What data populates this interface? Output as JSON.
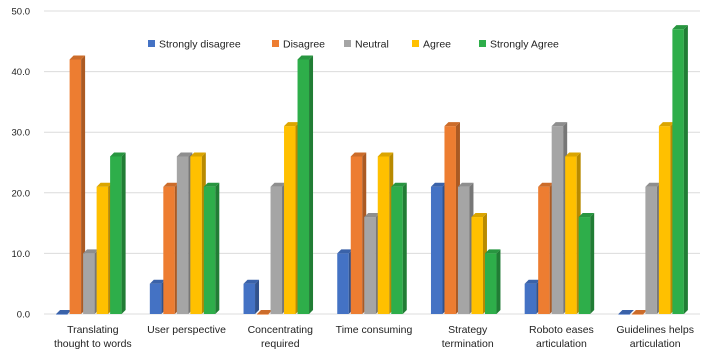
{
  "chart_data": {
    "type": "bar",
    "title": "",
    "xlabel": "",
    "ylabel": "",
    "ylim": [
      0,
      50
    ],
    "yticks": [
      "0.0",
      "10.0",
      "20.0",
      "30.0",
      "40.0",
      "50.0"
    ],
    "grid": true,
    "legend_position": "top",
    "categories": [
      [
        "Translating",
        "thought to words"
      ],
      [
        "User perspective"
      ],
      [
        "Concentrating",
        "required"
      ],
      [
        "Time consuming"
      ],
      [
        "Strategy",
        "termination"
      ],
      [
        "Roboto eases",
        "articulation"
      ],
      [
        "Guidelines helps",
        "articulation"
      ]
    ],
    "series": [
      {
        "name": "Strongly disagree",
        "color": "#4472C4",
        "values": [
          0,
          5,
          5,
          10,
          21,
          5,
          0
        ]
      },
      {
        "name": "Disagree",
        "color": "#ED7D31",
        "values": [
          42,
          21,
          0,
          26,
          31,
          21,
          0
        ]
      },
      {
        "name": "Neutral",
        "color": "#A5A5A5",
        "values": [
          10,
          26,
          21,
          16,
          21,
          31,
          21
        ]
      },
      {
        "name": "Agree",
        "color": "#FFC000",
        "values": [
          21,
          26,
          31,
          26,
          16,
          26,
          31
        ]
      },
      {
        "name": "Strongly Agree",
        "color": "#2EAE4A",
        "values": [
          26,
          21,
          42,
          21,
          10,
          16,
          47
        ]
      }
    ]
  }
}
